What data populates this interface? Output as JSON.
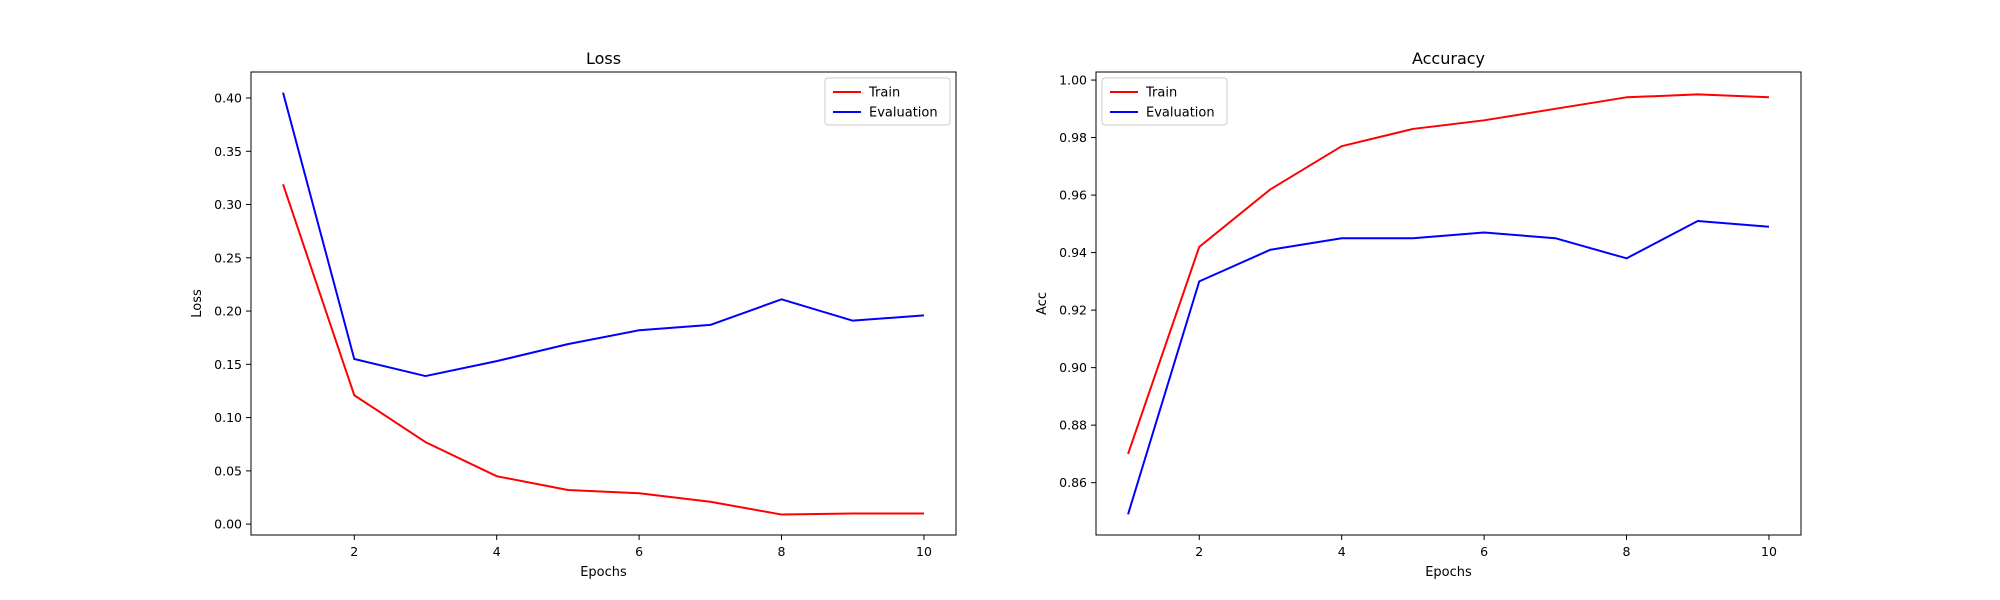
{
  "chart_data": [
    {
      "type": "line",
      "title": "Loss",
      "xlabel": "Epochs",
      "ylabel": "Loss",
      "x": [
        1,
        2,
        3,
        4,
        5,
        6,
        7,
        8,
        9,
        10
      ],
      "xlim": [
        0.55,
        10.45
      ],
      "ylim": [
        -0.0102,
        0.4244
      ],
      "xticks": [
        2,
        4,
        6,
        8,
        10
      ],
      "yticks": [
        0.0,
        0.05,
        0.1,
        0.15,
        0.2,
        0.25,
        0.3,
        0.35,
        0.4
      ],
      "ytick_labels": [
        "0.00",
        "0.05",
        "0.10",
        "0.15",
        "0.20",
        "0.25",
        "0.30",
        "0.35",
        "0.40"
      ],
      "legend_position": "top-right",
      "grid": false,
      "series": [
        {
          "name": "Train",
          "color": "#ff0000",
          "values": [
            0.319,
            0.121,
            0.077,
            0.045,
            0.032,
            0.029,
            0.021,
            0.009,
            0.01,
            0.01
          ]
        },
        {
          "name": "Evaluation",
          "color": "#0000ff",
          "values": [
            0.405,
            0.155,
            0.139,
            0.153,
            0.169,
            0.182,
            0.187,
            0.211,
            0.191,
            0.196
          ]
        }
      ]
    },
    {
      "type": "line",
      "title": "Accuracy",
      "xlabel": "Epochs",
      "ylabel": "Acc",
      "x": [
        1,
        2,
        3,
        4,
        5,
        6,
        7,
        8,
        9,
        10
      ],
      "xlim": [
        0.55,
        10.45
      ],
      "ylim": [
        0.8418,
        1.0028
      ],
      "xticks": [
        2,
        4,
        6,
        8,
        10
      ],
      "yticks": [
        0.86,
        0.88,
        0.9,
        0.92,
        0.94,
        0.96,
        0.98,
        1.0
      ],
      "ytick_labels": [
        "0.86",
        "0.88",
        "0.90",
        "0.92",
        "0.94",
        "0.96",
        "0.98",
        "1.00"
      ],
      "legend_position": "top-left",
      "grid": false,
      "series": [
        {
          "name": "Train",
          "color": "#ff0000",
          "values": [
            0.87,
            0.942,
            0.962,
            0.977,
            0.983,
            0.986,
            0.99,
            0.994,
            0.995,
            0.994
          ]
        },
        {
          "name": "Evaluation",
          "color": "#0000ff",
          "values": [
            0.849,
            0.93,
            0.941,
            0.945,
            0.945,
            0.947,
            0.945,
            0.938,
            0.951,
            0.949
          ]
        }
      ]
    }
  ]
}
